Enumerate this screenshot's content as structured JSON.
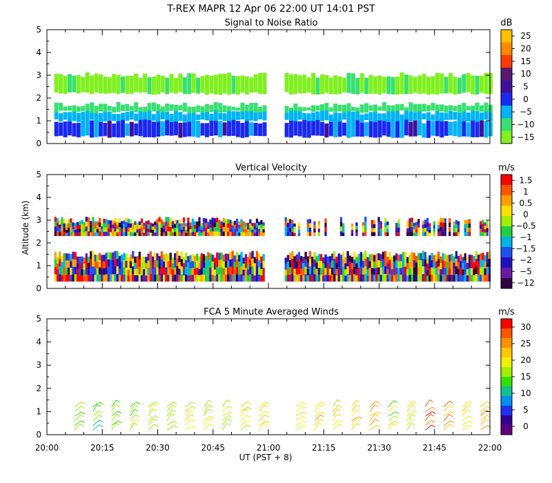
{
  "header": {
    "title": "T-REX  MAPR 12 Apr 06  22:00 UT  14:01  PST"
  },
  "x_axis": {
    "ticks": [
      "20:00",
      "20:15",
      "20:30",
      "20:45",
      "21:00",
      "21:15",
      "21:30",
      "21:45",
      "22:00"
    ],
    "label": "UT  (PST + 8)",
    "range_minutes": [
      0,
      120
    ]
  },
  "y_axis": {
    "label": "Altitude (km)"
  },
  "chart_data": [
    {
      "type": "heatmap",
      "title": "Signal to Noise Ratio",
      "ylim": [
        0,
        5
      ],
      "y_ticks": [
        "0",
        "1",
        "2",
        "3",
        "4",
        "5"
      ],
      "colorbar_unit": "dB",
      "colorbar_labels": [
        "25",
        "20",
        "15",
        "10",
        "5",
        "0",
        "−5",
        "−10",
        "−15"
      ],
      "colorbar_colors": [
        "#ffc000",
        "#ff8a00",
        "#ff3a00",
        "#5a1a70",
        "#40109a",
        "#1a28f0",
        "#00b4f5",
        "#38e070",
        "#80f020"
      ],
      "data_gap_minutes": [
        59,
        64
      ],
      "bands": [
        {
          "alt_range_km": [
            0.3,
            1.0
          ],
          "dB": -5,
          "color": "#1a28f0"
        },
        {
          "alt_range_km": [
            1.0,
            1.4
          ],
          "dB": -7,
          "color": "#00b4f5"
        },
        {
          "alt_range_km": [
            1.4,
            1.7
          ],
          "dB": -12,
          "color": "#38e070"
        },
        {
          "alt_range_km": [
            2.2,
            3.0
          ],
          "dB": -13,
          "color": "#80f020"
        }
      ]
    },
    {
      "type": "heatmap",
      "title": "Vertical Velocity",
      "ylim": [
        0,
        5
      ],
      "y_ticks": [
        "0",
        "1",
        "2",
        "3",
        "4",
        "5"
      ],
      "colorbar_unit": "m/s",
      "colorbar_labels": [
        "1.5",
        "1",
        "0.5",
        "0",
        "−0.5",
        "−1",
        "−1.5",
        "−2",
        "−5",
        "−12"
      ],
      "colorbar_colors": [
        "#ff0000",
        "#ff5500",
        "#ffa000",
        "#ffe000",
        "#a0f000",
        "#20d040",
        "#00b4e0",
        "#2050f0",
        "#2010c0",
        "#6a1aa0",
        "#300040"
      ],
      "data_gap_minutes": [
        59,
        64
      ],
      "bands": [
        {
          "alt_range_km": [
            0.3,
            1.5
          ],
          "color": "mixed"
        },
        {
          "alt_range_km": [
            2.3,
            3.0
          ],
          "color": "mixed"
        }
      ]
    },
    {
      "type": "barbs",
      "title": "FCA 5 Minute Averaged Winds",
      "ylim": [
        0,
        5
      ],
      "y_ticks": [
        "0",
        "1",
        "2",
        "3",
        "4",
        "5"
      ],
      "colorbar_unit": "m/s",
      "colorbar_labels": [
        "30",
        "25",
        "20",
        "15",
        "10",
        "5",
        "0"
      ],
      "colorbar_colors": [
        "#ff0000",
        "#ff5500",
        "#ff9000",
        "#ffc800",
        "#f0f000",
        "#a0f000",
        "#30e000",
        "#10c090",
        "#0090f0",
        "#2030f0",
        "#300090",
        "#600080"
      ],
      "time_minutes": [
        7.5,
        12.5,
        17.5,
        22.5,
        27.5,
        32.5,
        37.5,
        42.5,
        47.5,
        52.5,
        57.5,
        67.5,
        72.5,
        77.5,
        82.5,
        87.5,
        92.5,
        97.5,
        102.5,
        107.5,
        112.5,
        117.5
      ],
      "altitudes_km": [
        0.2,
        0.4,
        0.6,
        0.8,
        1.0,
        1.2
      ],
      "speed_ms": [
        16,
        14,
        15,
        15,
        17,
        16,
        18,
        17,
        17,
        19,
        20,
        22,
        21,
        20,
        21,
        23,
        16,
        18,
        27,
        24,
        21,
        23
      ]
    }
  ]
}
